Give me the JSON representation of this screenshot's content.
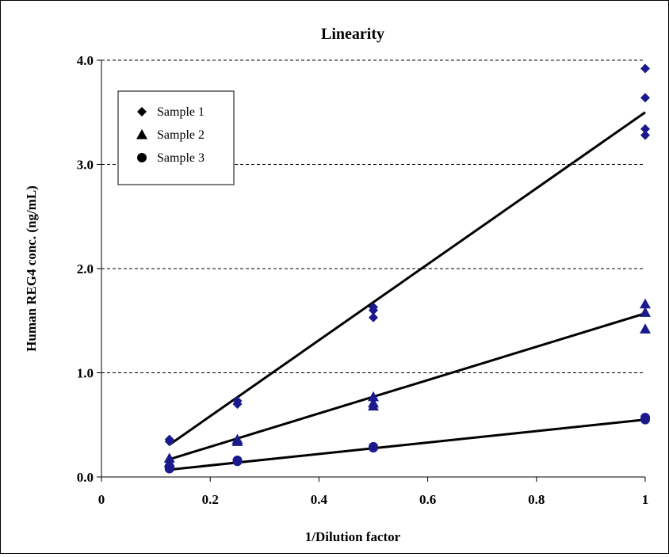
{
  "chart_data": {
    "type": "scatter",
    "title": "Linearity",
    "xlabel": "1/Dilution factor",
    "ylabel": "Human REG4 conc. (ng/mL)",
    "xlim": [
      0,
      1
    ],
    "ylim": [
      0,
      4
    ],
    "x_ticks": [
      "0",
      "0.2",
      "0.4",
      "0.6",
      "0.8",
      "1"
    ],
    "y_ticks": [
      "0.0",
      "1.0",
      "2.0",
      "3.0",
      "4.0"
    ],
    "grid": "horizontal dashed",
    "legend_position": "top-left",
    "marker_color": "#1a1a8c",
    "series": [
      {
        "name": "Sample 1",
        "marker": "diamond",
        "points": [
          [
            0.125,
            0.34
          ],
          [
            0.125,
            0.36
          ],
          [
            0.25,
            0.7
          ],
          [
            0.25,
            0.73
          ],
          [
            0.5,
            1.53
          ],
          [
            0.5,
            1.6
          ],
          [
            0.5,
            1.63
          ],
          [
            1,
            3.28
          ],
          [
            1,
            3.34
          ],
          [
            1,
            3.64
          ],
          [
            1,
            3.92
          ]
        ],
        "trendline": [
          [
            0.125,
            0.31
          ],
          [
            1,
            3.5
          ]
        ]
      },
      {
        "name": "Sample 2",
        "marker": "triangle",
        "points": [
          [
            0.125,
            0.14
          ],
          [
            0.125,
            0.18
          ],
          [
            0.25,
            0.34
          ],
          [
            0.25,
            0.36
          ],
          [
            0.5,
            0.68
          ],
          [
            0.5,
            0.71
          ],
          [
            0.5,
            0.77
          ],
          [
            1,
            1.42
          ],
          [
            1,
            1.58
          ],
          [
            1,
            1.66
          ]
        ],
        "trendline": [
          [
            0.125,
            0.17
          ],
          [
            1,
            1.57
          ]
        ]
      },
      {
        "name": "Sample 3",
        "marker": "circle",
        "points": [
          [
            0.125,
            0.08
          ],
          [
            0.125,
            0.1
          ],
          [
            0.25,
            0.15
          ],
          [
            0.25,
            0.16
          ],
          [
            0.5,
            0.28
          ],
          [
            0.5,
            0.29
          ],
          [
            1,
            0.55
          ],
          [
            1,
            0.57
          ]
        ],
        "trendline": [
          [
            0.125,
            0.07
          ],
          [
            1,
            0.55
          ]
        ]
      }
    ]
  }
}
